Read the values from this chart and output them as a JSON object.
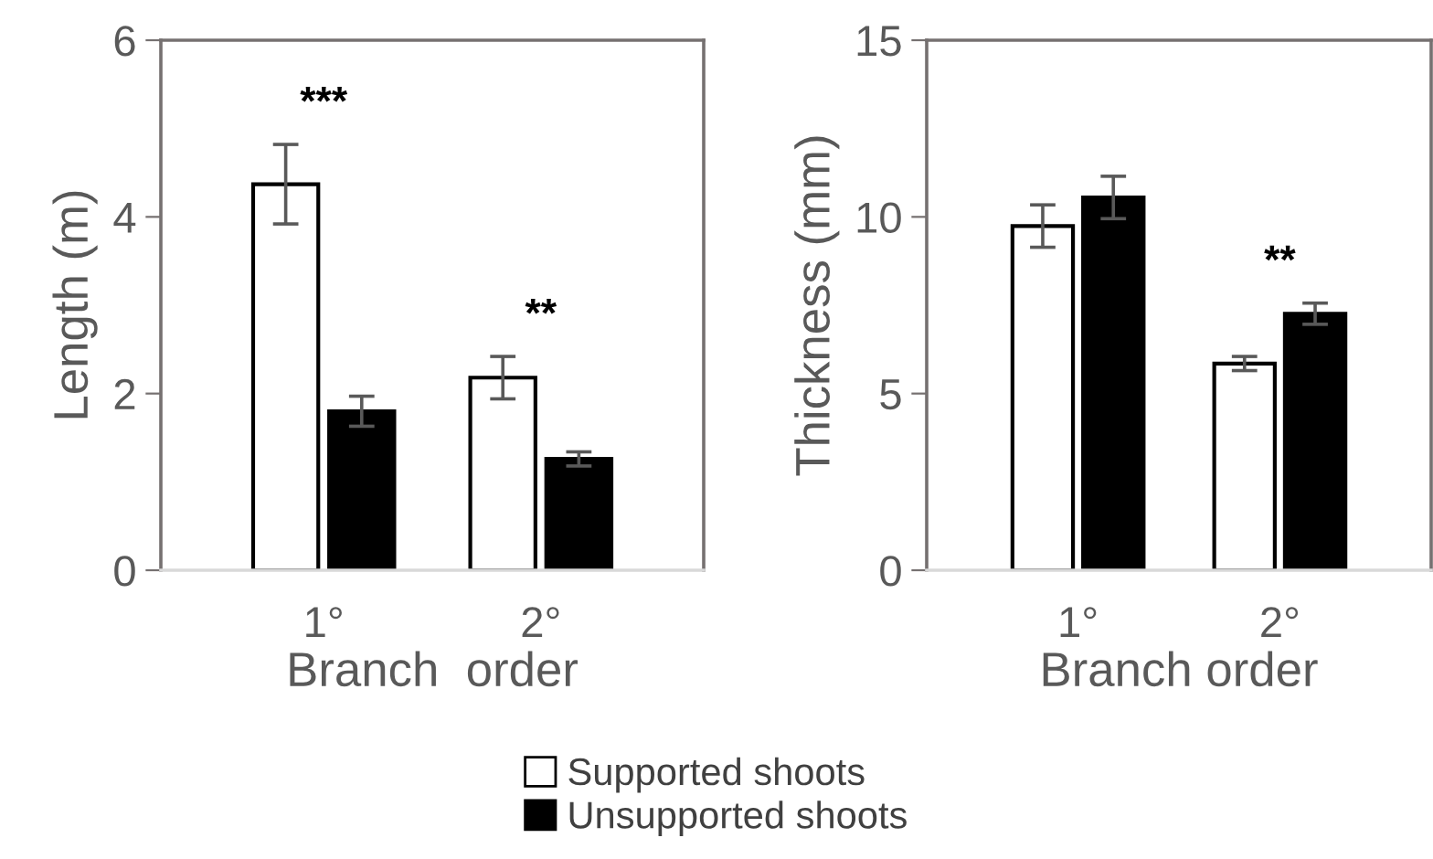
{
  "chart_data": [
    {
      "type": "bar",
      "xlabel": "Branch  order",
      "ylabel": "Length (m)",
      "categories": [
        "1°",
        "2°"
      ],
      "ylim": [
        0,
        6
      ],
      "yticks": [
        0,
        2,
        4,
        6
      ],
      "grid": false,
      "legend": "bottom",
      "series": [
        {
          "name": "Supported shoots",
          "color": "#ffffff",
          "values": [
            4.37,
            2.18
          ],
          "errors": [
            0.45,
            0.24
          ]
        },
        {
          "name": "Unsupported shoots",
          "color": "#000000",
          "values": [
            1.8,
            1.26
          ],
          "errors": [
            0.17,
            0.08
          ]
        }
      ],
      "annotations": [
        "***",
        "**"
      ]
    },
    {
      "type": "bar",
      "xlabel": "Branch order",
      "ylabel": "Thickness (mm)",
      "categories": [
        "1°",
        "2°"
      ],
      "ylim": [
        0,
        15
      ],
      "yticks": [
        0,
        5,
        10,
        15
      ],
      "grid": false,
      "series": [
        {
          "color": "#ffffff",
          "values": [
            9.74,
            5.85
          ],
          "errors": [
            0.6,
            0.2
          ]
        },
        {
          "color": "#000000",
          "values": [
            10.55,
            7.26
          ],
          "errors": [
            0.6,
            0.3
          ]
        }
      ],
      "annotations": [
        "**"
      ]
    }
  ]
}
